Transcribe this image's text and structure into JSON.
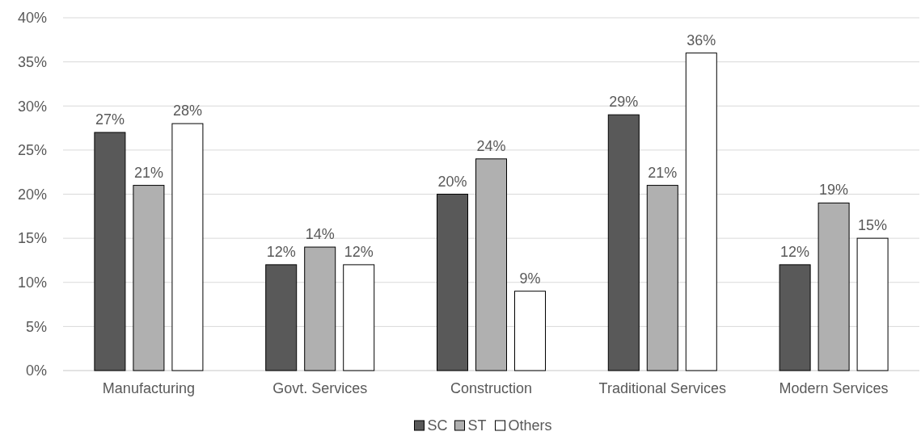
{
  "chart_data": {
    "type": "bar",
    "categories": [
      "Manufacturing",
      "Govt. Services",
      "Construction",
      "Traditional Services",
      "Modern Services"
    ],
    "series": [
      {
        "name": "SC",
        "color": "#595959",
        "values": [
          27,
          12,
          20,
          29,
          12
        ],
        "value_labels": [
          "27%",
          "12%",
          "20%",
          "29%",
          "12%"
        ]
      },
      {
        "name": "ST",
        "color": "#b0b0b0",
        "values": [
          21,
          14,
          24,
          21,
          19
        ],
        "value_labels": [
          "21%",
          "14%",
          "24%",
          "21%",
          "19%"
        ]
      },
      {
        "name": "Others",
        "color": "#ffffff",
        "values": [
          28,
          12,
          9,
          36,
          15
        ],
        "value_labels": [
          "28%",
          "12%",
          "9%",
          "36%",
          "15%"
        ]
      }
    ],
    "ylim": [
      0,
      40
    ],
    "yticks": [
      {
        "value": 0,
        "label": "0%"
      },
      {
        "value": 5,
        "label": "5%"
      },
      {
        "value": 10,
        "label": "10%"
      },
      {
        "value": 15,
        "label": "15%"
      },
      {
        "value": 20,
        "label": "20%"
      },
      {
        "value": 25,
        "label": "25%"
      },
      {
        "value": 30,
        "label": "30%"
      },
      {
        "value": 35,
        "label": "35%"
      },
      {
        "value": 40,
        "label": "40%"
      }
    ],
    "grid": "y",
    "legend": "bottom"
  }
}
